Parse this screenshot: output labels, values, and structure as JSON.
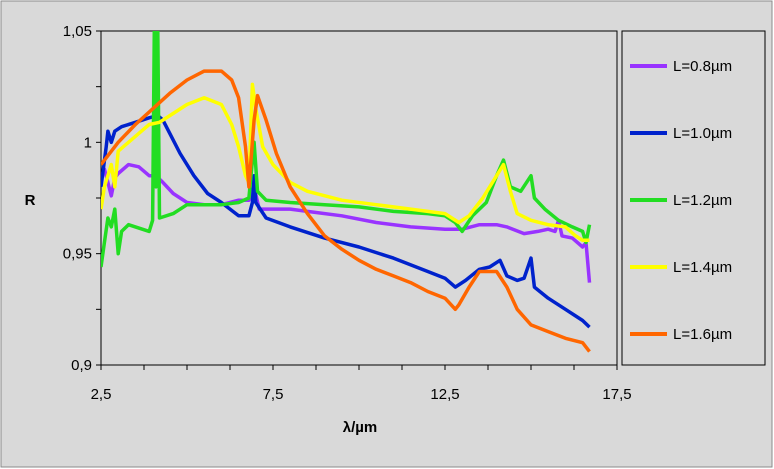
{
  "chart_data": {
    "type": "line",
    "title": "",
    "xlabel": "λ/µm",
    "ylabel": "R",
    "xlim": [
      2.5,
      17.5
    ],
    "ylim": [
      0.9,
      1.05
    ],
    "x_ticks": [
      "2,5",
      "7,5",
      "12,5",
      "17,5"
    ],
    "x_tick_values": [
      2.5,
      7.5,
      12.5,
      17.5
    ],
    "y_ticks": [
      "0,9",
      "0,95",
      "1",
      "1,05"
    ],
    "y_tick_values": [
      0.9,
      0.95,
      1.0,
      1.05
    ],
    "grid": false,
    "legend_position": "right",
    "background_color": "#d9d9d9",
    "series": [
      {
        "name": "L=0.8µm",
        "color": "#9933ff",
        "points": [
          [
            2.5,
            0.984
          ],
          [
            2.6,
            0.988
          ],
          [
            2.7,
            0.982
          ],
          [
            2.8,
            0.976
          ],
          [
            2.9,
            0.984
          ],
          [
            3.0,
            0.986
          ],
          [
            3.3,
            0.99
          ],
          [
            3.6,
            0.989
          ],
          [
            3.9,
            0.985
          ],
          [
            4.1,
            0.985
          ],
          [
            4.3,
            0.982
          ],
          [
            4.6,
            0.977
          ],
          [
            5.0,
            0.973
          ],
          [
            5.5,
            0.972
          ],
          [
            6.0,
            0.972
          ],
          [
            6.5,
            0.974
          ],
          [
            6.8,
            0.974
          ],
          [
            6.95,
            0.98
          ],
          [
            7.1,
            0.97
          ],
          [
            7.4,
            0.97
          ],
          [
            8.0,
            0.97
          ],
          [
            8.5,
            0.969
          ],
          [
            9.5,
            0.967
          ],
          [
            10.5,
            0.964
          ],
          [
            11.5,
            0.962
          ],
          [
            12.5,
            0.961
          ],
          [
            13.0,
            0.961
          ],
          [
            13.5,
            0.963
          ],
          [
            14.0,
            0.963
          ],
          [
            14.3,
            0.962
          ],
          [
            14.8,
            0.959
          ],
          [
            15.2,
            0.96
          ],
          [
            15.5,
            0.961
          ],
          [
            15.7,
            0.96
          ],
          [
            15.8,
            0.965
          ],
          [
            15.9,
            0.958
          ],
          [
            16.2,
            0.957
          ],
          [
            16.5,
            0.953
          ],
          [
            16.6,
            0.955
          ],
          [
            16.7,
            0.937
          ]
        ]
      },
      {
        "name": "L=1.0µm",
        "color": "#0022cc",
        "points": [
          [
            2.5,
            0.98
          ],
          [
            2.65,
            0.998
          ],
          [
            2.7,
            1.005
          ],
          [
            2.8,
            1.0
          ],
          [
            2.9,
            1.005
          ],
          [
            3.1,
            1.007
          ],
          [
            3.5,
            1.009
          ],
          [
            3.9,
            1.011
          ],
          [
            4.15,
            1.012
          ],
          [
            4.3,
            1.01
          ],
          [
            4.5,
            1.004
          ],
          [
            4.8,
            0.995
          ],
          [
            5.2,
            0.985
          ],
          [
            5.6,
            0.977
          ],
          [
            6.0,
            0.973
          ],
          [
            6.5,
            0.967
          ],
          [
            6.8,
            0.967
          ],
          [
            6.9,
            0.973
          ],
          [
            6.95,
            0.985
          ],
          [
            7.0,
            0.973
          ],
          [
            7.3,
            0.966
          ],
          [
            8.0,
            0.962
          ],
          [
            9.0,
            0.957
          ],
          [
            10.0,
            0.953
          ],
          [
            11.0,
            0.948
          ],
          [
            12.0,
            0.942
          ],
          [
            12.5,
            0.939
          ],
          [
            12.8,
            0.935
          ],
          [
            13.1,
            0.938
          ],
          [
            13.5,
            0.943
          ],
          [
            13.8,
            0.944
          ],
          [
            14.1,
            0.947
          ],
          [
            14.3,
            0.94
          ],
          [
            14.6,
            0.938
          ],
          [
            14.8,
            0.939
          ],
          [
            15.0,
            0.948
          ],
          [
            15.1,
            0.935
          ],
          [
            15.5,
            0.93
          ],
          [
            16.0,
            0.925
          ],
          [
            16.3,
            0.922
          ],
          [
            16.5,
            0.92
          ],
          [
            16.7,
            0.917
          ]
        ]
      },
      {
        "name": "L=1.2µm",
        "color": "#22dd22",
        "points": [
          [
            2.5,
            0.944
          ],
          [
            2.6,
            0.955
          ],
          [
            2.7,
            0.966
          ],
          [
            2.8,
            0.962
          ],
          [
            2.9,
            0.97
          ],
          [
            3.0,
            0.95
          ],
          [
            3.1,
            0.96
          ],
          [
            3.3,
            0.963
          ],
          [
            3.7,
            0.961
          ],
          [
            3.9,
            0.96
          ],
          [
            4.0,
            0.965
          ],
          [
            4.05,
            1.05
          ],
          [
            4.1,
            0.98
          ],
          [
            4.15,
            1.05
          ],
          [
            4.2,
            0.966
          ],
          [
            4.6,
            0.968
          ],
          [
            5.0,
            0.972
          ],
          [
            5.5,
            0.972
          ],
          [
            6.0,
            0.972
          ],
          [
            6.5,
            0.973
          ],
          [
            6.8,
            0.975
          ],
          [
            6.95,
            1.0
          ],
          [
            7.05,
            0.978
          ],
          [
            7.3,
            0.974
          ],
          [
            8.0,
            0.973
          ],
          [
            9.0,
            0.972
          ],
          [
            10.0,
            0.971
          ],
          [
            11.0,
            0.969
          ],
          [
            12.0,
            0.968
          ],
          [
            12.5,
            0.967
          ],
          [
            12.8,
            0.964
          ],
          [
            13.0,
            0.96
          ],
          [
            13.3,
            0.967
          ],
          [
            13.7,
            0.973
          ],
          [
            14.0,
            0.985
          ],
          [
            14.2,
            0.992
          ],
          [
            14.4,
            0.98
          ],
          [
            14.7,
            0.978
          ],
          [
            15.0,
            0.985
          ],
          [
            15.1,
            0.975
          ],
          [
            15.4,
            0.97
          ],
          [
            15.8,
            0.965
          ],
          [
            16.2,
            0.962
          ],
          [
            16.5,
            0.96
          ],
          [
            16.6,
            0.955
          ],
          [
            16.7,
            0.963
          ]
        ]
      },
      {
        "name": "L=1.4µm",
        "color": "#ffff00",
        "points": [
          [
            2.5,
            0.97
          ],
          [
            2.6,
            0.98
          ],
          [
            2.8,
            0.99
          ],
          [
            2.9,
            0.98
          ],
          [
            3.0,
            0.996
          ],
          [
            3.3,
            1.0
          ],
          [
            3.6,
            1.004
          ],
          [
            3.9,
            1.008
          ],
          [
            4.2,
            1.009
          ],
          [
            4.5,
            1.012
          ],
          [
            5.0,
            1.017
          ],
          [
            5.5,
            1.02
          ],
          [
            6.0,
            1.017
          ],
          [
            6.3,
            1.008
          ],
          [
            6.5,
            0.998
          ],
          [
            6.7,
            0.985
          ],
          [
            6.8,
            0.982
          ],
          [
            6.9,
            1.026
          ],
          [
            7.0,
            1.015
          ],
          [
            7.2,
            0.998
          ],
          [
            7.5,
            0.99
          ],
          [
            8.0,
            0.982
          ],
          [
            8.5,
            0.978
          ],
          [
            9.5,
            0.974
          ],
          [
            10.5,
            0.972
          ],
          [
            11.5,
            0.97
          ],
          [
            12.5,
            0.968
          ],
          [
            12.9,
            0.964
          ],
          [
            13.2,
            0.967
          ],
          [
            13.6,
            0.975
          ],
          [
            14.0,
            0.985
          ],
          [
            14.2,
            0.99
          ],
          [
            14.4,
            0.978
          ],
          [
            14.6,
            0.968
          ],
          [
            15.0,
            0.965
          ],
          [
            15.5,
            0.963
          ],
          [
            16.0,
            0.962
          ],
          [
            16.3,
            0.958
          ],
          [
            16.5,
            0.956
          ],
          [
            16.7,
            0.956
          ]
        ]
      },
      {
        "name": "L=1.6µm",
        "color": "#ff6600",
        "points": [
          [
            2.5,
            0.99
          ],
          [
            3.0,
            1.0
          ],
          [
            3.5,
            1.008
          ],
          [
            4.0,
            1.015
          ],
          [
            4.5,
            1.022
          ],
          [
            5.0,
            1.028
          ],
          [
            5.5,
            1.032
          ],
          [
            6.0,
            1.032
          ],
          [
            6.3,
            1.028
          ],
          [
            6.5,
            1.02
          ],
          [
            6.7,
            0.998
          ],
          [
            6.8,
            0.98
          ],
          [
            6.95,
            1.01
          ],
          [
            7.05,
            1.021
          ],
          [
            7.3,
            1.01
          ],
          [
            7.6,
            0.995
          ],
          [
            8.0,
            0.98
          ],
          [
            8.5,
            0.968
          ],
          [
            9.0,
            0.958
          ],
          [
            9.5,
            0.952
          ],
          [
            10.0,
            0.947
          ],
          [
            10.5,
            0.943
          ],
          [
            11.0,
            0.94
          ],
          [
            11.5,
            0.937
          ],
          [
            12.0,
            0.933
          ],
          [
            12.5,
            0.93
          ],
          [
            12.8,
            0.925
          ],
          [
            12.9,
            0.927
          ],
          [
            13.2,
            0.935
          ],
          [
            13.5,
            0.942
          ],
          [
            13.8,
            0.942
          ],
          [
            14.0,
            0.942
          ],
          [
            14.3,
            0.935
          ],
          [
            14.6,
            0.925
          ],
          [
            15.0,
            0.918
          ],
          [
            15.5,
            0.915
          ],
          [
            16.0,
            0.912
          ],
          [
            16.5,
            0.91
          ],
          [
            16.7,
            0.906
          ]
        ]
      }
    ]
  }
}
